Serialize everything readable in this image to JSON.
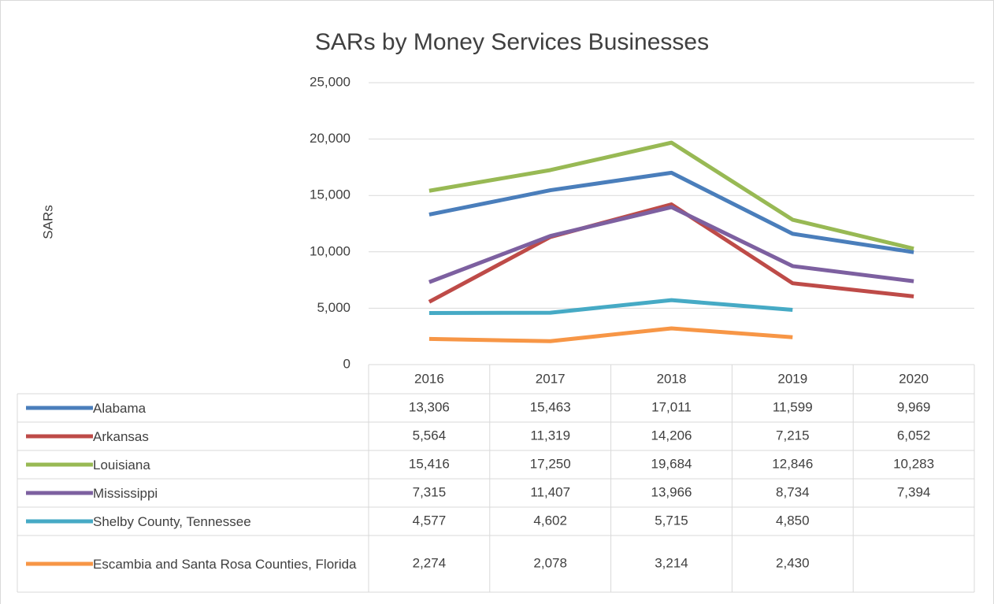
{
  "chart_data": {
    "type": "line",
    "title": "SARs by Money Services Businesses",
    "y_label": "SARs",
    "categories": [
      "2016",
      "2017",
      "2018",
      "2019",
      "2020"
    ],
    "ylim": [
      0,
      25000
    ],
    "yticks": [
      0,
      {
        "value": 5000,
        "label": "5,000"
      },
      {
        "value": 10000,
        "label": "10,000"
      },
      {
        "value": 15000,
        "label": "15,000"
      },
      {
        "value": 20000,
        "label": "20,000"
      },
      {
        "value": 25000,
        "label": "25,000"
      }
    ],
    "grid": true,
    "series": [
      {
        "name": "Alabama",
        "color": "#4a7ebb",
        "values": [
          13306,
          15463,
          17011,
          11599,
          9969
        ],
        "value_labels": [
          "13,306",
          "15,463",
          "17,011",
          "11,599",
          "9,969"
        ]
      },
      {
        "name": "Arkansas",
        "color": "#be4b48",
        "values": [
          5564,
          11319,
          14206,
          7215,
          6052
        ],
        "value_labels": [
          "5,564",
          "11,319",
          "14,206",
          "7,215",
          "6,052"
        ]
      },
      {
        "name": "Louisiana",
        "color": "#98b954",
        "values": [
          15416,
          17250,
          19684,
          12846,
          10283
        ],
        "value_labels": [
          "15,416",
          "17,250",
          "19,684",
          "12,846",
          "10,283"
        ]
      },
      {
        "name": "Mississippi",
        "color": "#7d60a0",
        "values": [
          7315,
          11407,
          13966,
          8734,
          7394
        ],
        "value_labels": [
          "7,315",
          "11,407",
          "13,966",
          "8,734",
          "7,394"
        ]
      },
      {
        "name": "Shelby County, Tennessee",
        "color": "#46aac5",
        "values": [
          4577,
          4602,
          5715,
          4850,
          null
        ],
        "value_labels": [
          "4,577",
          "4,602",
          "5,715",
          "4,850",
          null
        ]
      },
      {
        "name": "Escambia and Santa Rosa Counties, Florida",
        "color": "#f79646",
        "values": [
          2274,
          2078,
          3214,
          2430,
          null
        ],
        "value_labels": [
          "2,274",
          "2,078",
          "3,214",
          "2,430",
          null
        ]
      }
    ]
  }
}
